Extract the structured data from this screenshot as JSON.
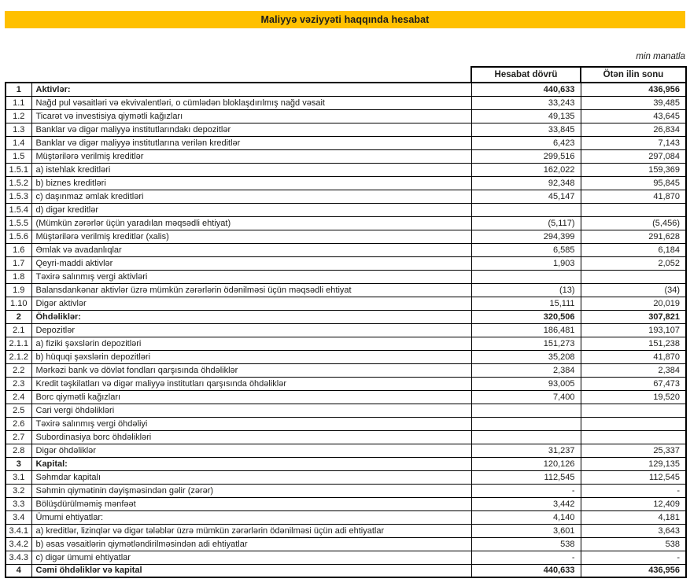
{
  "header": {
    "title": "Maliyyə vəziyyəti haqqında hesabat",
    "unit_note": "min manatla"
  },
  "colors": {
    "accent_yellow": "#FFC000",
    "border": "#000000",
    "text": "#1d1d1b"
  },
  "table": {
    "col_headers": [
      "Hesabat dövrü",
      "Ötən ilin sonu"
    ],
    "rows": [
      {
        "no": "1",
        "label": "Aktivlər:",
        "v1": "440,633",
        "v2": "436,956",
        "bold": true,
        "bold_values": true
      },
      {
        "no": "1.1",
        "label": "Nağd pul vəsaitləri və ekvivalentləri, o cümlədən bloklaşdırılmış nağd vəsait",
        "v1": "33,243",
        "v2": "39,485"
      },
      {
        "no": "1.2",
        "label": "Ticarət və investisiya qiymətli kağızları",
        "v1": "49,135",
        "v2": "43,645"
      },
      {
        "no": "1.3",
        "label": "Banklar və digər maliyyə institutlarındakı depozitlər",
        "v1": "33,845",
        "v2": "26,834"
      },
      {
        "no": "1.4",
        "label": "Banklar və digər maliyyə institutlarına verilən kreditlər",
        "v1": "6,423",
        "v2": "7,143"
      },
      {
        "no": "1.5",
        "label": "Müştərilərə verilmiş kreditlər",
        "v1": "299,516",
        "v2": "297,084"
      },
      {
        "no": "1.5.1",
        "label": "a) istehlak kreditləri",
        "v1": "162,022",
        "v2": "159,369"
      },
      {
        "no": "1.5.2",
        "label": "b) biznes kreditləri",
        "v1": "92,348",
        "v2": "95,845"
      },
      {
        "no": "1.5.3",
        "label": "c) daşınmaz əmlak kreditləri",
        "v1": "45,147",
        "v2": "41,870"
      },
      {
        "no": "1.5.4",
        "label": "d) digər kreditlər",
        "v1": "",
        "v2": ""
      },
      {
        "no": "1.5.5",
        "label": "(Mümkün zərərlər üçün yaradılan məqsədli ehtiyat)",
        "v1": "(5,117)",
        "v2": "(5,456)"
      },
      {
        "no": "1.5.6",
        "label": "Müştərilərə verilmiş kreditlər (xalis)",
        "v1": "294,399",
        "v2": "291,628"
      },
      {
        "no": "1.6",
        "label": "Əmlak və avadanlıqlar",
        "v1": "6,585",
        "v2": "6,184"
      },
      {
        "no": "1.7",
        "label": "Qeyri-maddi aktivlər",
        "v1": "1,903",
        "v2": "2,052"
      },
      {
        "no": "1.8",
        "label": "Təxirə salınmış vergi aktivləri",
        "v1": "",
        "v2": ""
      },
      {
        "no": "1.9",
        "label": "Balansdankənar aktivlər üzrə mümkün zərərlərin ödənilməsi üçün məqsədli ehtiyat",
        "v1": "(13)",
        "v2": "(34)"
      },
      {
        "no": "1.10",
        "label": "Digər aktivlər",
        "v1": "15,111",
        "v2": "20,019"
      },
      {
        "no": "2",
        "label": "Öhdəliklər:",
        "v1": "320,506",
        "v2": "307,821",
        "bold": true,
        "bold_values": true
      },
      {
        "no": "2.1",
        "label": "Depozitlər",
        "v1": "186,481",
        "v2": "193,107"
      },
      {
        "no": "2.1.1",
        "label": "a) fiziki şəxslərin depozitləri",
        "v1": "151,273",
        "v2": "151,238"
      },
      {
        "no": "2.1.2",
        "label": "b) hüquqi şəxslərin depozitləri",
        "v1": "35,208",
        "v2": "41,870"
      },
      {
        "no": "2.2",
        "label": "Mərkəzi bank və dövlət  fondları qarşısında öhdəliklər",
        "v1": "2,384",
        "v2": "2,384"
      },
      {
        "no": "2.3",
        "label": "Kredit təşkilatları və digər maliyyə institutları qarşısında öhdəliklər",
        "v1": "93,005",
        "v2": "67,473"
      },
      {
        "no": "2.4",
        "label": "Borc qiymətli kağızları",
        "v1": "7,400",
        "v2": "19,520"
      },
      {
        "no": "2.5",
        "label": "Cari vergi öhdəlikləri",
        "v1": "",
        "v2": ""
      },
      {
        "no": "2.6",
        "label": "Təxirə salınmış vergi öhdəliyi",
        "v1": "",
        "v2": ""
      },
      {
        "no": "2.7",
        "label": "Subordinasiya borc öhdəlikləri",
        "v1": "",
        "v2": ""
      },
      {
        "no": "2.8",
        "label": "Digər öhdəliklər",
        "v1": "31,237",
        "v2": "25,337"
      },
      {
        "no": "3",
        "label": "Kapital:",
        "v1": "120,126",
        "v2": "129,135",
        "bold": true
      },
      {
        "no": "3.1",
        "label": "Səhmdar kapitalı",
        "v1": "112,545",
        "v2": "112,545"
      },
      {
        "no": "3.2",
        "label": "Səhmin qiymətinin dəyişməsindən gəlir (zərər)",
        "v1": "-",
        "v2": "-"
      },
      {
        "no": "3.3",
        "label": "Bölüşdürülməmiş mənfəət",
        "v1": "3,442",
        "v2": "12,409"
      },
      {
        "no": "3.4",
        "label": "Ümumi ehtiyatlar:",
        "v1": "4,140",
        "v2": "4,181"
      },
      {
        "no": "3.4.1",
        "label": "a) kreditlər, lizinqlər və digər tələblər üzrə mümkün zərərlərin ödənilməsi üçün adi ehtiyatlar",
        "v1": "3,601",
        "v2": "3,643"
      },
      {
        "no": "3.4.2",
        "label": "b) əsas vəsaitlərin qiymətləndirilməsindən adi ehtiyatlar",
        "v1": "538",
        "v2": "538"
      },
      {
        "no": "3.4.3",
        "label": "c) digər ümumi ehtiyatlar",
        "v1": "-",
        "v2": "-"
      },
      {
        "no": "4",
        "label": "Cəmi öhdəliklər və kapital",
        "v1": "440,633",
        "v2": "436,956",
        "bold": true,
        "bold_values": true
      }
    ]
  }
}
